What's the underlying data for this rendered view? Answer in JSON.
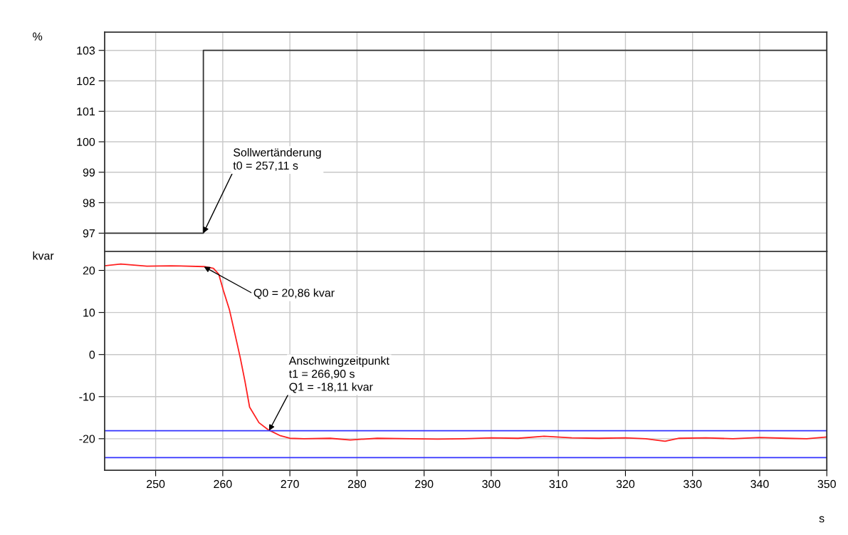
{
  "chart_data": [
    {
      "type": "step",
      "ylabel": "%",
      "xlim": [
        242.4,
        350
      ],
      "ylim": [
        96.4,
        103.6
      ],
      "yticks": [
        97,
        98,
        99,
        100,
        101,
        102,
        103
      ],
      "tick_labels": "y",
      "grid": true,
      "series": [
        {
          "color": "#333333",
          "x": [
            242.4,
            257.11,
            350
          ],
          "values": [
            97,
            103,
            103
          ]
        }
      ],
      "annotations": [
        {
          "text": "Sollwertänderung\nt0 = 257,11 s",
          "x": 257.11,
          "y": 97
        }
      ]
    },
    {
      "type": "line",
      "ylabel": "kvar",
      "xlabel": "s",
      "xlim": [
        242.4,
        350
      ],
      "ylim": [
        -27.5,
        24.5
      ],
      "xticks": [
        250,
        260,
        270,
        280,
        290,
        300,
        310,
        320,
        330,
        340,
        350
      ],
      "yticks": [
        -20,
        -10,
        0,
        10,
        20
      ],
      "grid": true,
      "series": [
        {
          "color": "#ff2020",
          "x": [
            242.4,
            244.8,
            248.7,
            252.3,
            257.2,
            258.6,
            259.4,
            260.1,
            261.0,
            261.8,
            262.6,
            263.3,
            264.0,
            265.4,
            266.8,
            268.6,
            270.0,
            272.1,
            276.0,
            279.0,
            283.0,
            288.0,
            292.0,
            296.0,
            300.0,
            304.0,
            307.9,
            312.0,
            316.0,
            320.0,
            323.0,
            325.9,
            328.0,
            332.0,
            336.0,
            340.0,
            344.0,
            347.0,
            350.0
          ],
          "values": [
            21.1,
            21.5,
            21.0,
            21.1,
            20.9,
            20.5,
            19.1,
            15.2,
            10.6,
            5.0,
            -0.7,
            -6.3,
            -12.5,
            -16.2,
            -17.9,
            -19.3,
            -19.9,
            -20.0,
            -19.9,
            -20.3,
            -19.9,
            -20.0,
            -20.1,
            -20.0,
            -19.8,
            -19.9,
            -19.4,
            -19.8,
            -19.9,
            -19.8,
            -20.0,
            -20.6,
            -19.9,
            -19.8,
            -20.0,
            -19.7,
            -19.9,
            -20.0,
            -19.6
          ]
        }
      ],
      "ref_lines": [
        {
          "axis": "y",
          "value": -18.1,
          "color": "#3333ff"
        },
        {
          "axis": "y",
          "value": -24.5,
          "color": "#3333ff"
        }
      ],
      "annotations": [
        {
          "text": "Q0 = 20,86 kvar",
          "x": 257.2,
          "y": 20.86
        },
        {
          "text": "Anschwingzeitpunkt\nt1 = 266,90 s\nQ1 = -18,11 kvar",
          "x": 266.9,
          "y": -18.11
        }
      ]
    }
  ]
}
